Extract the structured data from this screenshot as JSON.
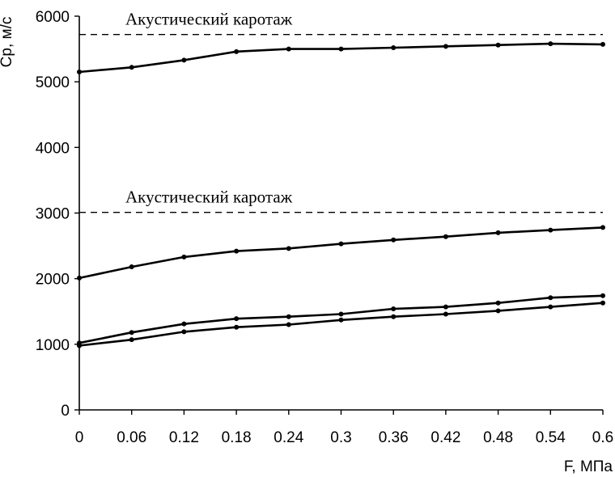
{
  "chart_data": {
    "type": "line",
    "xlabel": "F, МПа",
    "ylabel": "Cp, м/с",
    "xlim": [
      0,
      0.6
    ],
    "ylim": [
      0,
      6000
    ],
    "x_ticks": [
      "0",
      "0.06",
      "0.12",
      "0.18",
      "0.24",
      "0.3",
      "0.36",
      "0.42",
      "0.48",
      "0.54",
      "0.6"
    ],
    "y_ticks": [
      "0",
      "1000",
      "2000",
      "3000",
      "4000",
      "5000",
      "6000"
    ],
    "grid": false,
    "x": [
      0,
      0.06,
      0.12,
      0.18,
      0.24,
      0.3,
      0.36,
      0.42,
      0.48,
      0.54,
      0.6
    ],
    "series": [
      {
        "values": [
          5150,
          5220,
          5330,
          5460,
          5500,
          5500,
          5520,
          5540,
          5560,
          5580,
          5570
        ]
      },
      {
        "values": [
          2010,
          2180,
          2330,
          2420,
          2460,
          2530,
          2590,
          2640,
          2700,
          2740,
          2780
        ]
      },
      {
        "values": [
          1020,
          1180,
          1310,
          1390,
          1420,
          1460,
          1540,
          1570,
          1630,
          1710,
          1740
        ]
      },
      {
        "values": [
          980,
          1070,
          1190,
          1260,
          1300,
          1370,
          1420,
          1460,
          1510,
          1570,
          1630
        ]
      }
    ],
    "reference_lines": [
      {
        "y": 5720,
        "style": "dashed",
        "label": "Акустический каротаж"
      },
      {
        "y": 3010,
        "style": "dashed",
        "label": "Акустический каротаж"
      }
    ]
  }
}
